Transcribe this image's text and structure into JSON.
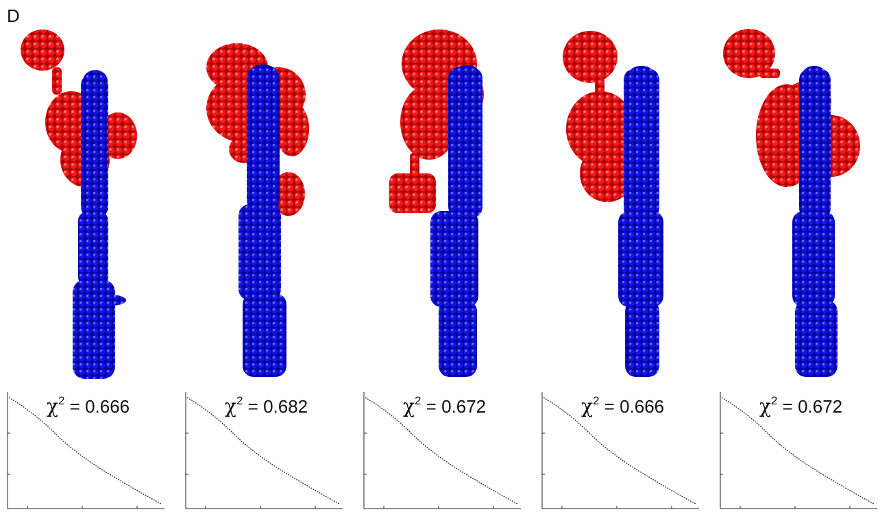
{
  "panel_label": "D",
  "colors": {
    "domain_a": "#e00000",
    "domain_b": "#0a0ad8",
    "fit_line": "#444444",
    "axis": "#222222"
  },
  "models": [
    {
      "chi_symbol": "χ",
      "chi_exp": "2",
      "chi_eq": " = ",
      "chi_value": "0.666"
    },
    {
      "chi_symbol": "χ",
      "chi_exp": "2",
      "chi_eq": " = ",
      "chi_value": "0.682"
    },
    {
      "chi_symbol": "χ",
      "chi_exp": "2",
      "chi_eq": " = ",
      "chi_value": "0.672"
    },
    {
      "chi_symbol": "χ",
      "chi_exp": "2",
      "chi_eq": " = ",
      "chi_value": "0.666"
    },
    {
      "chi_symbol": "χ",
      "chi_exp": "2",
      "chi_eq": " = ",
      "chi_value": "0.672"
    }
  ]
}
